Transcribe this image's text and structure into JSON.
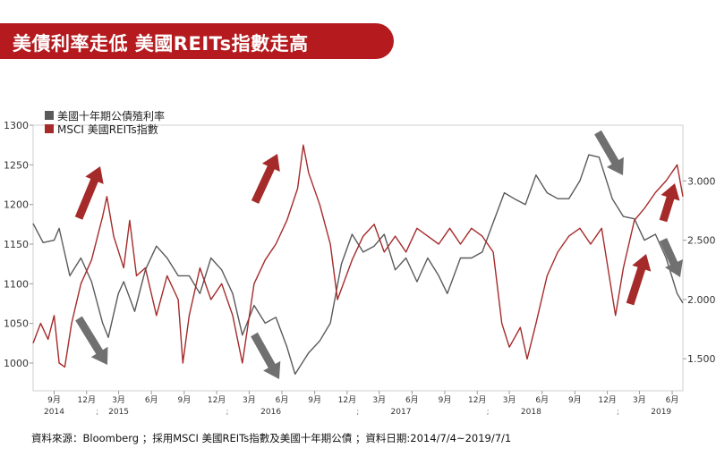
{
  "header": {
    "title": "美債利率走低 美國REITs指數走高"
  },
  "source_note": "資料來源：Bloomberg ；採用MSCI 美國REITs指數及美國十年期公債 ；資料日期:2014/7/4~2019/7/1",
  "colors": {
    "banner": "#b41a1e",
    "treasury": "#5a5a5a",
    "reits": "#a52a2a",
    "arrow_red": "#a52a2a",
    "arrow_gray": "#707070"
  },
  "chart_data": {
    "type": "line",
    "x_range": [
      "2014-07-04",
      "2019-07-01"
    ],
    "left_axis": {
      "ylim": [
        965,
        1300
      ],
      "ticks": [
        "1000",
        "1050",
        "1100",
        "1150",
        "1200",
        "1250",
        "1300"
      ]
    },
    "right_axis": {
      "ylim": [
        1.23,
        3.47
      ],
      "ticks": [
        "1.500",
        "2.000",
        "2.500",
        "3.000"
      ]
    },
    "x_ticks": [
      {
        "date": "2014-09-01",
        "label": "9月"
      },
      {
        "date": "2014-12-01",
        "label": "12月"
      },
      {
        "date": "2015-03-01",
        "label": "3月"
      },
      {
        "date": "2015-06-01",
        "label": "6月"
      },
      {
        "date": "2015-09-01",
        "label": "9月"
      },
      {
        "date": "2015-12-01",
        "label": "12月"
      },
      {
        "date": "2016-03-01",
        "label": "3月"
      },
      {
        "date": "2016-06-01",
        "label": "6月"
      },
      {
        "date": "2016-09-01",
        "label": "9月"
      },
      {
        "date": "2016-12-01",
        "label": "12月"
      },
      {
        "date": "2017-03-01",
        "label": "3月"
      },
      {
        "date": "2017-06-01",
        "label": "6月"
      },
      {
        "date": "2017-09-01",
        "label": "9月"
      },
      {
        "date": "2017-12-01",
        "label": "12月"
      },
      {
        "date": "2018-03-01",
        "label": "3月"
      },
      {
        "date": "2018-06-01",
        "label": "6月"
      },
      {
        "date": "2018-09-01",
        "label": "9月"
      },
      {
        "date": "2018-12-01",
        "label": "12月"
      },
      {
        "date": "2019-03-01",
        "label": "3月"
      },
      {
        "date": "2019-06-01",
        "label": "6月"
      }
    ],
    "year_labels": [
      {
        "date": "2014-09-01",
        "label": "2014"
      },
      {
        "date": "2015-03-01",
        "label": "2015"
      },
      {
        "date": "2016-05-01",
        "label": "2016"
      },
      {
        "date": "2017-05-01",
        "label": "2017"
      },
      {
        "date": "2018-05-01",
        "label": "2018"
      },
      {
        "date": "2019-05-01",
        "label": "2019"
      }
    ],
    "series": [
      {
        "name": "美國十年期公債殖利率",
        "axis": "right",
        "points": [
          [
            "2014-07-04",
            2.64
          ],
          [
            "2014-08-01",
            2.48
          ],
          [
            "2014-09-01",
            2.5
          ],
          [
            "2014-09-15",
            2.6
          ],
          [
            "2014-10-15",
            2.2
          ],
          [
            "2014-11-15",
            2.35
          ],
          [
            "2014-12-15",
            2.15
          ],
          [
            "2015-01-15",
            1.8
          ],
          [
            "2015-01-31",
            1.68
          ],
          [
            "2015-02-28",
            2.05
          ],
          [
            "2015-03-15",
            2.15
          ],
          [
            "2015-04-15",
            1.9
          ],
          [
            "2015-05-15",
            2.25
          ],
          [
            "2015-06-15",
            2.45
          ],
          [
            "2015-07-15",
            2.35
          ],
          [
            "2015-08-15",
            2.2
          ],
          [
            "2015-09-15",
            2.2
          ],
          [
            "2015-10-15",
            2.05
          ],
          [
            "2015-11-15",
            2.35
          ],
          [
            "2015-12-15",
            2.25
          ],
          [
            "2016-01-15",
            2.05
          ],
          [
            "2016-02-11",
            1.7
          ],
          [
            "2016-03-15",
            1.95
          ],
          [
            "2016-04-15",
            1.8
          ],
          [
            "2016-05-15",
            1.85
          ],
          [
            "2016-06-15",
            1.6
          ],
          [
            "2016-07-08",
            1.37
          ],
          [
            "2016-08-15",
            1.55
          ],
          [
            "2016-09-15",
            1.65
          ],
          [
            "2016-10-15",
            1.8
          ],
          [
            "2016-11-15",
            2.3
          ],
          [
            "2016-12-15",
            2.55
          ],
          [
            "2017-01-15",
            2.4
          ],
          [
            "2017-02-15",
            2.45
          ],
          [
            "2017-03-15",
            2.55
          ],
          [
            "2017-04-15",
            2.25
          ],
          [
            "2017-05-15",
            2.35
          ],
          [
            "2017-06-15",
            2.15
          ],
          [
            "2017-07-15",
            2.35
          ],
          [
            "2017-08-15",
            2.2
          ],
          [
            "2017-09-08",
            2.05
          ],
          [
            "2017-10-15",
            2.35
          ],
          [
            "2017-11-15",
            2.35
          ],
          [
            "2017-12-15",
            2.4
          ],
          [
            "2018-01-15",
            2.65
          ],
          [
            "2018-02-15",
            2.9
          ],
          [
            "2018-03-15",
            2.85
          ],
          [
            "2018-04-15",
            2.8
          ],
          [
            "2018-05-15",
            3.05
          ],
          [
            "2018-06-15",
            2.9
          ],
          [
            "2018-07-15",
            2.85
          ],
          [
            "2018-08-15",
            2.85
          ],
          [
            "2018-09-15",
            3.0
          ],
          [
            "2018-10-10",
            3.22
          ],
          [
            "2018-11-08",
            3.2
          ],
          [
            "2018-12-15",
            2.85
          ],
          [
            "2019-01-15",
            2.7
          ],
          [
            "2019-02-15",
            2.68
          ],
          [
            "2019-03-15",
            2.5
          ],
          [
            "2019-04-15",
            2.55
          ],
          [
            "2019-05-15",
            2.35
          ],
          [
            "2019-06-15",
            2.05
          ],
          [
            "2019-07-01",
            1.97
          ]
        ]
      },
      {
        "name": "MSCI 美國REITs指數",
        "axis": "left",
        "points": [
          [
            "2014-07-04",
            1025
          ],
          [
            "2014-07-25",
            1050
          ],
          [
            "2014-08-15",
            1030
          ],
          [
            "2014-09-01",
            1060
          ],
          [
            "2014-09-15",
            1000
          ],
          [
            "2014-10-01",
            995
          ],
          [
            "2014-10-20",
            1050
          ],
          [
            "2014-11-15",
            1100
          ],
          [
            "2014-12-15",
            1130
          ],
          [
            "2015-01-15",
            1185
          ],
          [
            "2015-01-27",
            1210
          ],
          [
            "2015-02-15",
            1160
          ],
          [
            "2015-03-15",
            1120
          ],
          [
            "2015-04-01",
            1180
          ],
          [
            "2015-04-20",
            1110
          ],
          [
            "2015-05-15",
            1120
          ],
          [
            "2015-06-15",
            1060
          ],
          [
            "2015-07-15",
            1110
          ],
          [
            "2015-08-15",
            1080
          ],
          [
            "2015-08-28",
            1000
          ],
          [
            "2015-09-15",
            1060
          ],
          [
            "2015-10-15",
            1120
          ],
          [
            "2015-11-15",
            1080
          ],
          [
            "2015-12-15",
            1100
          ],
          [
            "2016-01-15",
            1060
          ],
          [
            "2016-02-11",
            1000
          ],
          [
            "2016-03-15",
            1100
          ],
          [
            "2016-04-15",
            1130
          ],
          [
            "2016-05-15",
            1150
          ],
          [
            "2016-06-15",
            1180
          ],
          [
            "2016-07-15",
            1220
          ],
          [
            "2016-07-31",
            1275
          ],
          [
            "2016-08-15",
            1240
          ],
          [
            "2016-09-15",
            1200
          ],
          [
            "2016-10-15",
            1150
          ],
          [
            "2016-11-04",
            1080
          ],
          [
            "2016-12-15",
            1130
          ],
          [
            "2017-01-15",
            1160
          ],
          [
            "2017-02-15",
            1175
          ],
          [
            "2017-03-15",
            1140
          ],
          [
            "2017-04-15",
            1160
          ],
          [
            "2017-05-15",
            1140
          ],
          [
            "2017-06-15",
            1170
          ],
          [
            "2017-07-15",
            1160
          ],
          [
            "2017-08-15",
            1150
          ],
          [
            "2017-09-15",
            1170
          ],
          [
            "2017-10-15",
            1150
          ],
          [
            "2017-11-15",
            1170
          ],
          [
            "2017-12-15",
            1160
          ],
          [
            "2018-01-15",
            1140
          ],
          [
            "2018-02-08",
            1050
          ],
          [
            "2018-03-01",
            1020
          ],
          [
            "2018-04-01",
            1045
          ],
          [
            "2018-04-20",
            1005
          ],
          [
            "2018-05-15",
            1050
          ],
          [
            "2018-06-15",
            1110
          ],
          [
            "2018-07-15",
            1140
          ],
          [
            "2018-08-15",
            1160
          ],
          [
            "2018-09-15",
            1170
          ],
          [
            "2018-10-15",
            1150
          ],
          [
            "2018-11-15",
            1170
          ],
          [
            "2018-12-24",
            1060
          ],
          [
            "2019-01-15",
            1120
          ],
          [
            "2019-02-15",
            1180
          ],
          [
            "2019-03-15",
            1195
          ],
          [
            "2019-04-15",
            1215
          ],
          [
            "2019-05-15",
            1230
          ],
          [
            "2019-06-15",
            1250
          ],
          [
            "2019-07-01",
            1210
          ]
        ]
      }
    ]
  }
}
